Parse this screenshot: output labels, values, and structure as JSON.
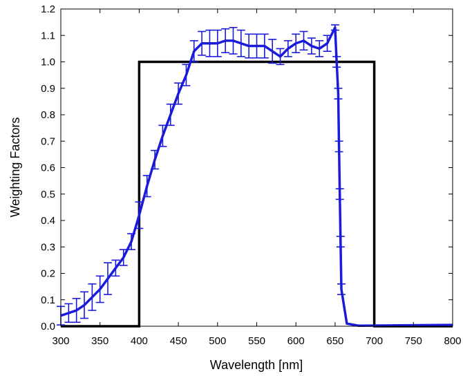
{
  "chart_data": {
    "type": "line",
    "title": "",
    "xlabel": "Wavelength [nm]",
    "ylabel": "Weighting Factors",
    "xlim": [
      300,
      800
    ],
    "ylim": [
      0,
      1.2
    ],
    "xticks": [
      300,
      350,
      400,
      450,
      500,
      550,
      600,
      650,
      700,
      750,
      800
    ],
    "yticks": [
      "0.0",
      "0.1",
      "0.2",
      "0.3",
      "0.4",
      "0.5",
      "0.6",
      "0.7",
      "0.8",
      "0.9",
      "1.0",
      "1.1",
      "1.2"
    ],
    "grid": false,
    "colors": {
      "measured": "#1a1adc",
      "ideal": "#000000"
    },
    "series": [
      {
        "style": "step",
        "x": [
          300,
          400,
          400,
          700,
          700,
          800
        ],
        "y": [
          0,
          0,
          1.0,
          1.0,
          0,
          0
        ]
      },
      {
        "style": "line-with-errorbars",
        "x": [
          300,
          310,
          320,
          330,
          340,
          350,
          360,
          370,
          380,
          390,
          400,
          410,
          420,
          430,
          440,
          450,
          460,
          470,
          480,
          490,
          500,
          510,
          520,
          530,
          540,
          550,
          560,
          570,
          580,
          590,
          600,
          610,
          620,
          630,
          640,
          650,
          652,
          654,
          655,
          656,
          657,
          658,
          665,
          680,
          800
        ],
        "y": [
          0.04,
          0.05,
          0.06,
          0.08,
          0.11,
          0.14,
          0.18,
          0.22,
          0.26,
          0.32,
          0.42,
          0.53,
          0.63,
          0.72,
          0.8,
          0.88,
          0.95,
          1.04,
          1.07,
          1.07,
          1.07,
          1.08,
          1.08,
          1.07,
          1.06,
          1.06,
          1.06,
          1.04,
          1.02,
          1.05,
          1.07,
          1.08,
          1.06,
          1.05,
          1.07,
          1.13,
          1.0,
          0.88,
          0.68,
          0.5,
          0.32,
          0.14,
          0.01,
          0.002,
          0.005
        ],
        "err": [
          0.035,
          0.035,
          0.045,
          0.05,
          0.05,
          0.05,
          0.06,
          0.03,
          0.03,
          0.03,
          0.05,
          0.04,
          0.035,
          0.04,
          0.04,
          0.04,
          0.04,
          0.04,
          0.045,
          0.05,
          0.05,
          0.045,
          0.05,
          0.05,
          0.045,
          0.045,
          0.045,
          0.045,
          0.03,
          0.03,
          0.035,
          0.035,
          0.03,
          0.03,
          0.03,
          0.01,
          0.02,
          0.02,
          0.02,
          0.02,
          0.02,
          0.02,
          0,
          0,
          0
        ]
      }
    ]
  }
}
